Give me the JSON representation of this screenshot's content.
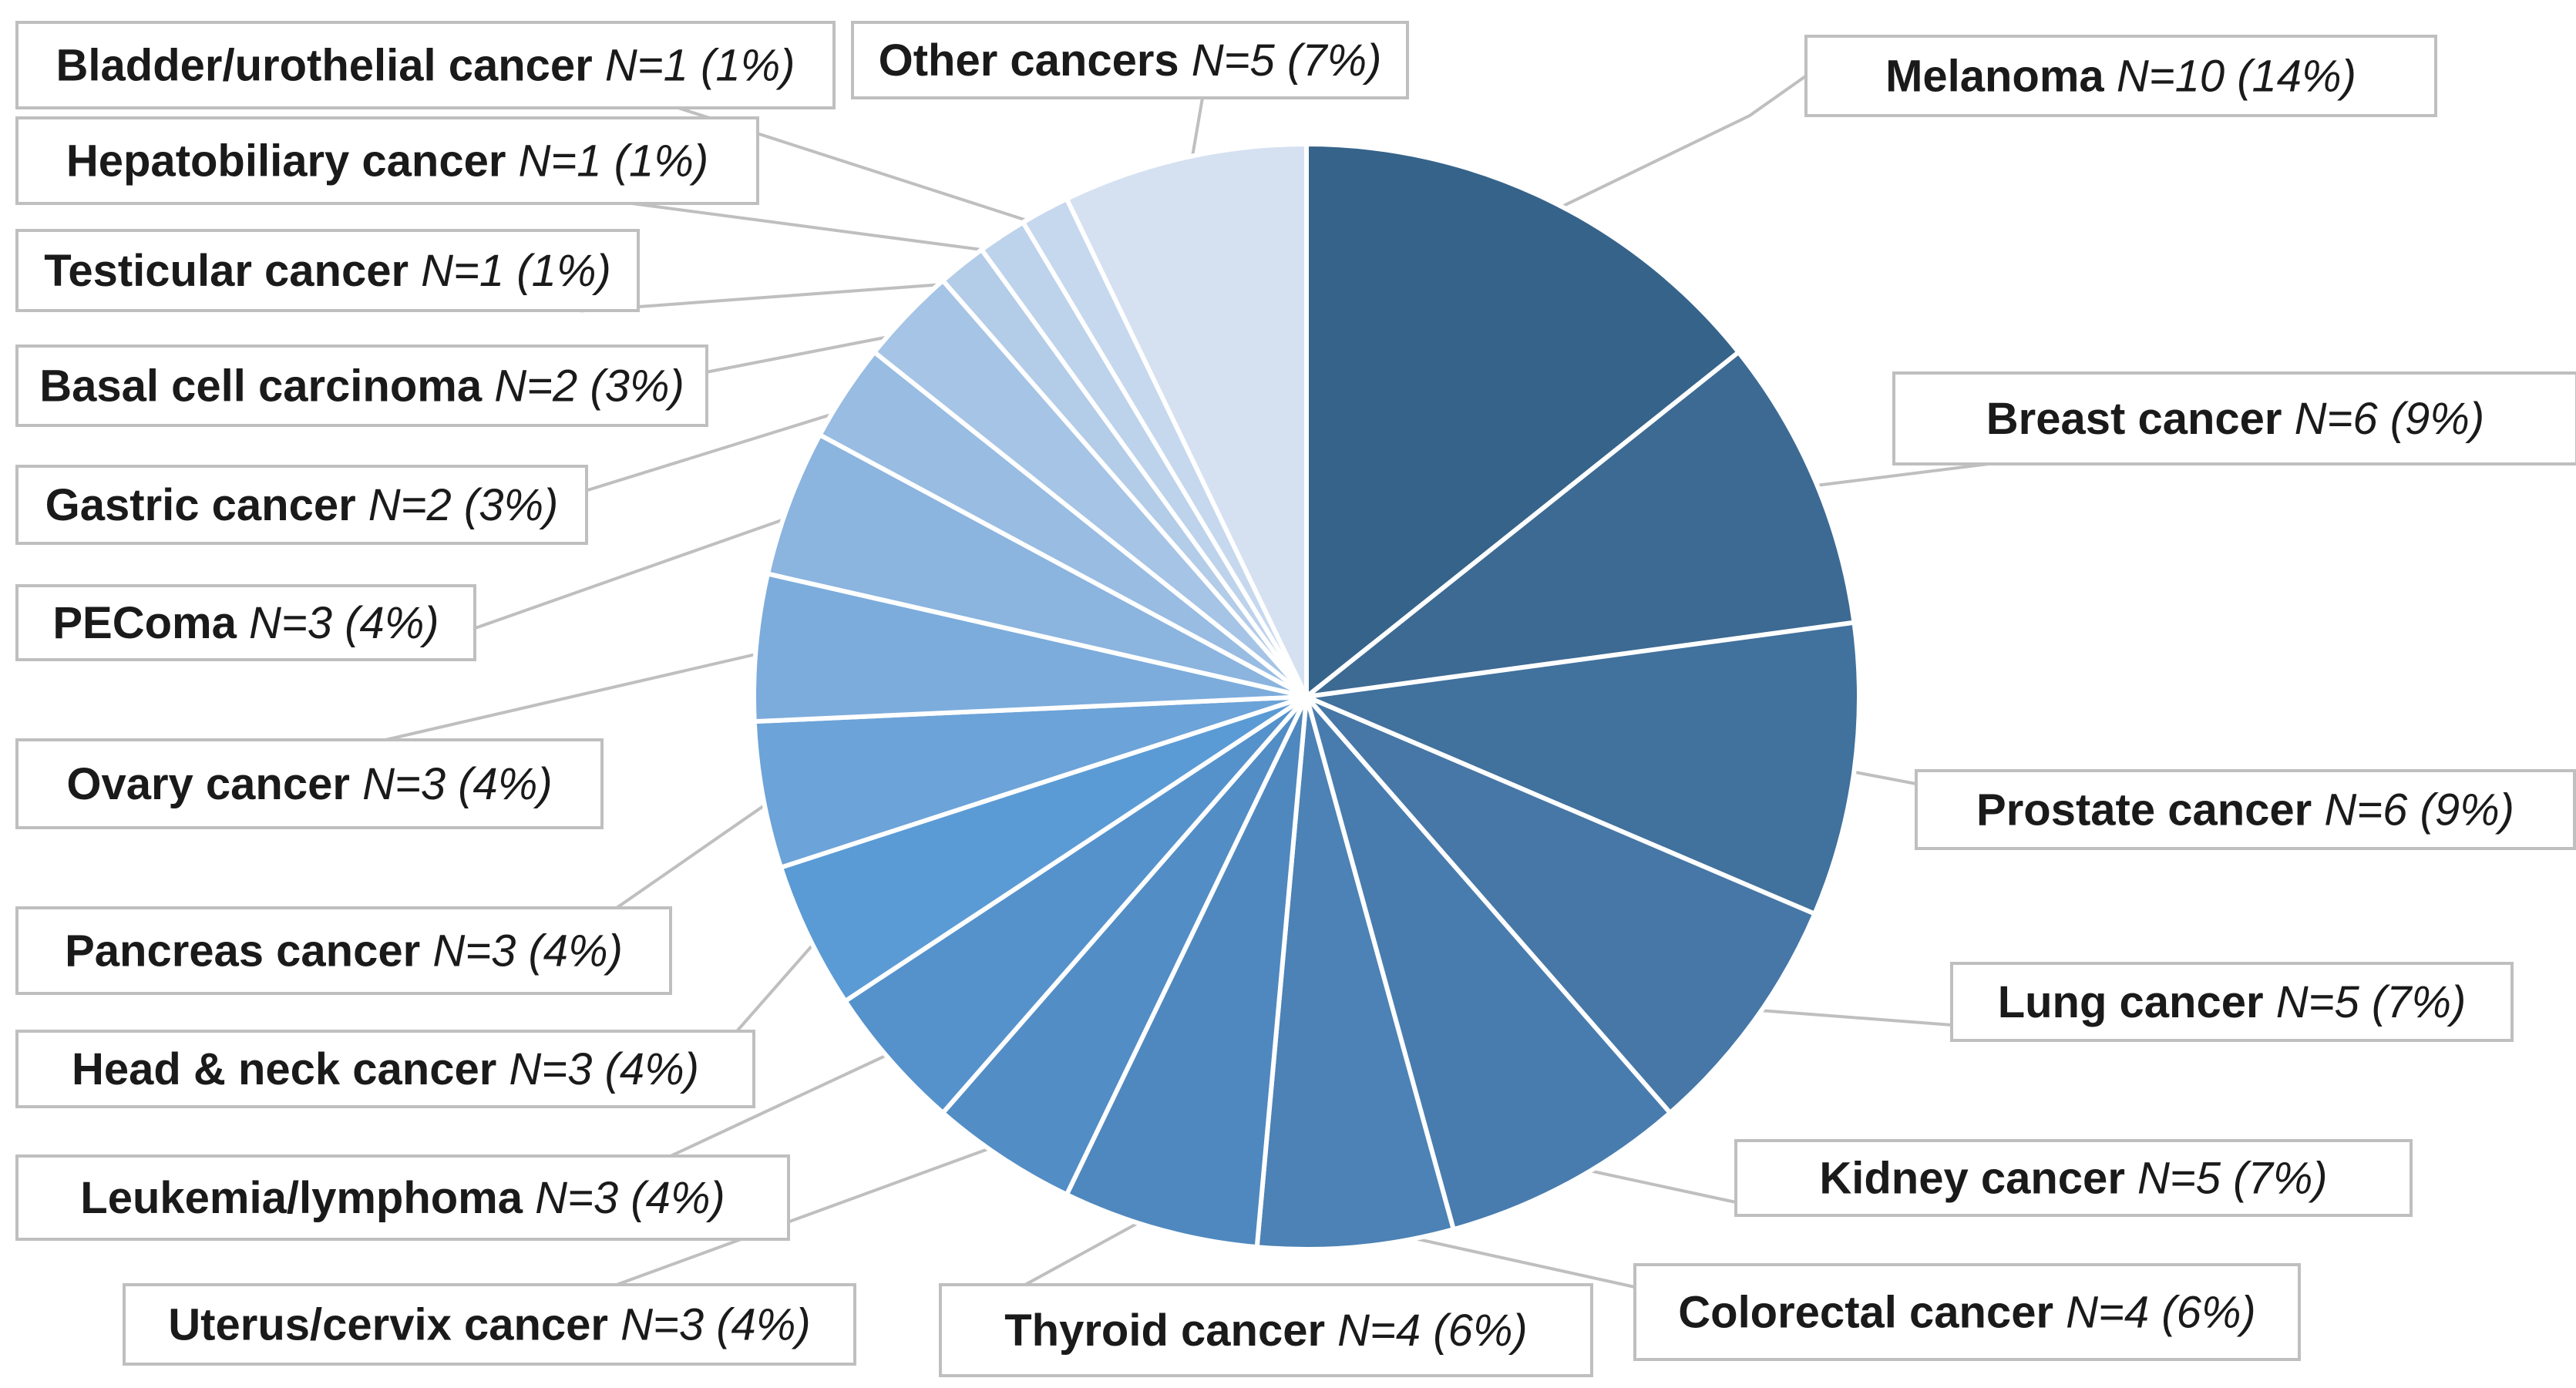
{
  "chart_data": {
    "type": "pie",
    "title": "",
    "start_angle_deg": 0,
    "direction": "clockwise",
    "slices": [
      {
        "name": "Melanoma",
        "n": 10,
        "percent": "14%",
        "value_label": "N=10 (14%)",
        "color": "#36638A"
      },
      {
        "name": "Breast cancer",
        "n": 6,
        "percent": "9%",
        "value_label": "N=6 (9%)",
        "color": "#3D6A93"
      },
      {
        "name": "Prostate cancer",
        "n": 6,
        "percent": "9%",
        "value_label": "N=6 (9%)",
        "color": "#41719D"
      },
      {
        "name": "Lung cancer",
        "n": 5,
        "percent": "7%",
        "value_label": "N=5 (7%)",
        "color": "#4677A6"
      },
      {
        "name": "Kidney cancer",
        "n": 5,
        "percent": "7%",
        "value_label": "N=5 (7%)",
        "color": "#497CAE"
      },
      {
        "name": "Colorectal cancer",
        "n": 4,
        "percent": "6%",
        "value_label": "N=4 (6%)",
        "color": "#4C82B5"
      },
      {
        "name": "Thyroid cancer",
        "n": 4,
        "percent": "6%",
        "value_label": "N=4 (6%)",
        "color": "#4F88BE"
      },
      {
        "name": "Uterus/cervix cancer",
        "n": 3,
        "percent": "4%",
        "value_label": "N=3 (4%)",
        "color": "#528DC5"
      },
      {
        "name": "Leukemia/lymphoma",
        "n": 3,
        "percent": "4%",
        "value_label": "N=3 (4%)",
        "color": "#5592CC"
      },
      {
        "name": "Head & neck cancer",
        "n": 3,
        "percent": "4%",
        "value_label": "N=3 (4%)",
        "color": "#5B9BD5"
      },
      {
        "name": "Pancreas cancer",
        "n": 3,
        "percent": "4%",
        "value_label": "N=3 (4%)",
        "color": "#6CA3D8"
      },
      {
        "name": "Ovary cancer",
        "n": 3,
        "percent": "4%",
        "value_label": "N=3 (4%)",
        "color": "#7CACDC"
      },
      {
        "name": "PEComa",
        "n": 3,
        "percent": "4%",
        "value_label": "N=3 (4%)",
        "color": "#8BB4DF"
      },
      {
        "name": "Gastric cancer",
        "n": 2,
        "percent": "3%",
        "value_label": "N=2 (3%)",
        "color": "#98BCE2"
      },
      {
        "name": "Basal cell carcinoma",
        "n": 2,
        "percent": "3%",
        "value_label": "N=2 (3%)",
        "color": "#A6C4E5"
      },
      {
        "name": "Testicular cancer",
        "n": 1,
        "percent": "1%",
        "value_label": "N=1 (1%)",
        "color": "#B3CCE8"
      },
      {
        "name": "Hepatobiliary cancer",
        "n": 1,
        "percent": "1%",
        "value_label": "N=1 (1%)",
        "color": "#BDD2EB"
      },
      {
        "name": "Bladder/urothelial cancer",
        "n": 1,
        "percent": "1%",
        "value_label": "N=1 (1%)",
        "color": "#C6D8EE"
      },
      {
        "name": "Other cancers",
        "n": 5,
        "percent": "7%",
        "value_label": "N=5 (7%)",
        "color": "#D5E1F1"
      }
    ]
  }
}
